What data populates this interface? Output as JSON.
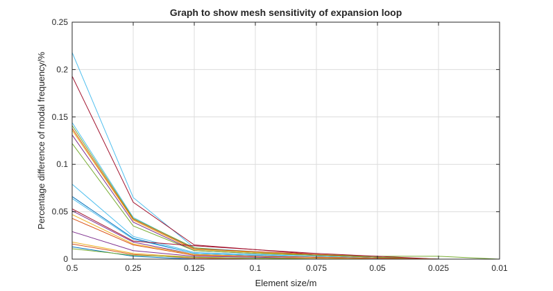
{
  "chart_data": {
    "type": "line",
    "title": "Graph to show mesh sensitivity of expansion loop",
    "xlabel": "Element size/m",
    "ylabel": "Percentage difference of modal frequency/%",
    "categories": [
      "0.5",
      "0.25",
      "0.125",
      "0.1",
      "0.075",
      "0.05",
      "0.025",
      "0.01"
    ],
    "ylim": [
      0,
      0.25
    ],
    "yticks": [
      "0",
      "0.05",
      "0.1",
      "0.15",
      "0.2",
      "0.25"
    ],
    "grid": true,
    "legend": "none",
    "series": [
      {
        "color": "#4DBEEE",
        "values": [
          0.218,
          0.065,
          0.012,
          0.008,
          0.004,
          0.002,
          0.0,
          0.0
        ]
      },
      {
        "color": "#A2142F",
        "values": [
          0.193,
          0.06,
          0.015,
          0.01,
          0.005,
          0.002,
          0.0,
          0.0
        ]
      },
      {
        "color": "#4DBEEE",
        "values": [
          0.144,
          0.044,
          0.011,
          0.007,
          0.004,
          0.002,
          0.0,
          0.0
        ]
      },
      {
        "color": "#77AC30",
        "values": [
          0.141,
          0.043,
          0.012,
          0.007,
          0.005,
          0.003,
          0.003,
          0.0
        ]
      },
      {
        "color": "#D95319",
        "values": [
          0.138,
          0.042,
          0.011,
          0.008,
          0.005,
          0.002,
          0.0,
          0.0
        ]
      },
      {
        "color": "#EDB120",
        "values": [
          0.136,
          0.041,
          0.01,
          0.007,
          0.004,
          0.002,
          0.0,
          0.0
        ]
      },
      {
        "color": "#7E2F8E",
        "values": [
          0.131,
          0.039,
          0.009,
          0.006,
          0.004,
          0.002,
          0.0,
          0.0
        ]
      },
      {
        "color": "#77AC30",
        "values": [
          0.122,
          0.035,
          0.009,
          0.006,
          0.004,
          0.002,
          0.0,
          0.0
        ]
      },
      {
        "color": "#4DBEEE",
        "values": [
          0.079,
          0.024,
          0.007,
          0.005,
          0.003,
          0.001,
          0.0,
          0.0
        ]
      },
      {
        "color": "#0072BD",
        "values": [
          0.066,
          0.022,
          0.006,
          0.004,
          0.002,
          0.001,
          0.0,
          0.0
        ]
      },
      {
        "color": "#4DBEEE",
        "values": [
          0.064,
          0.021,
          0.006,
          0.004,
          0.002,
          0.001,
          0.0,
          0.0
        ]
      },
      {
        "color": "#A2142F",
        "values": [
          0.053,
          0.019,
          0.014,
          0.01,
          0.006,
          0.003,
          0.0,
          0.0
        ]
      },
      {
        "color": "#7E2F8E",
        "values": [
          0.051,
          0.018,
          0.005,
          0.003,
          0.002,
          0.001,
          0.0,
          0.0
        ]
      },
      {
        "color": "#EDB120",
        "values": [
          0.047,
          0.016,
          0.005,
          0.003,
          0.002,
          0.001,
          0.0,
          0.0
        ]
      },
      {
        "color": "#D95319",
        "values": [
          0.043,
          0.015,
          0.004,
          0.003,
          0.002,
          0.001,
          0.0,
          0.0
        ]
      },
      {
        "color": "#7E2F8E",
        "values": [
          0.029,
          0.009,
          0.003,
          0.002,
          0.001,
          0.0,
          0.0,
          0.0
        ]
      },
      {
        "color": "#EDB120",
        "values": [
          0.018,
          0.006,
          0.002,
          0.001,
          0.001,
          0.0,
          0.0,
          0.0
        ]
      },
      {
        "color": "#D95319",
        "values": [
          0.016,
          0.005,
          0.001,
          0.0,
          0.0,
          0.0,
          0.0,
          0.0
        ]
      },
      {
        "color": "#0072BD",
        "values": [
          0.013,
          0.003,
          0.0,
          0.0,
          0.0,
          0.0,
          0.0,
          0.0
        ]
      },
      {
        "color": "#77AC30",
        "values": [
          0.011,
          0.004,
          0.002,
          0.001,
          0.0,
          0.0,
          0.0,
          0.0
        ]
      }
    ]
  }
}
